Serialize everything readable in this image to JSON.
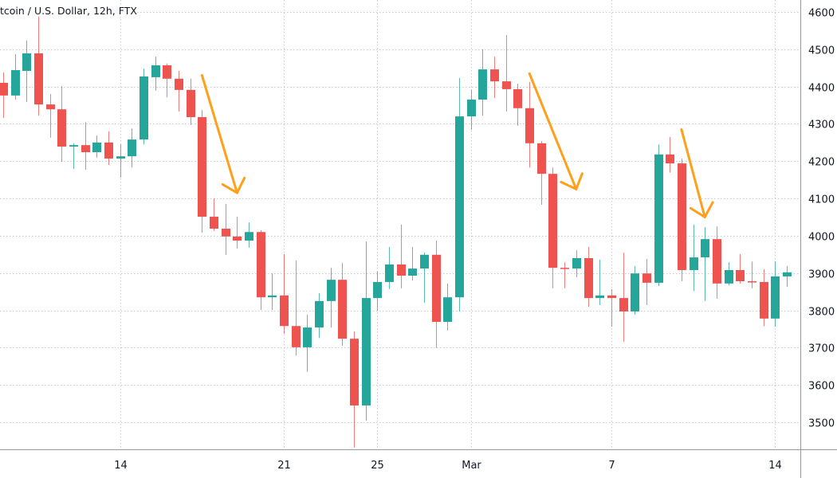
{
  "header": {
    "title": "tcoin / U.S. Dollar, 12h, FTX"
  },
  "colors": {
    "up": "#26a69a",
    "down": "#ef5350",
    "annotation": "#ff9f1a",
    "grid": "#c8cbd3",
    "axis": "#9598a1"
  },
  "chart_data": {
    "type": "candlestick",
    "title": "",
    "ylim": [
      3430,
      4630
    ],
    "grid": true,
    "y_ticks": [
      "4600",
      "4500",
      "4400",
      "4300",
      "4200",
      "4100",
      "4000",
      "3900",
      "3800",
      "3700",
      "3600",
      "3500"
    ],
    "x_ticks": [
      {
        "label": "14",
        "candle": 10
      },
      {
        "label": "21",
        "candle": 24
      },
      {
        "label": "25",
        "candle": 32
      },
      {
        "label": "Mar",
        "candle": 40
      },
      {
        "label": "7",
        "candle": 52
      },
      {
        "label": "14",
        "candle": 66
      }
    ],
    "columns": [
      "time",
      "open",
      "high",
      "low",
      "close"
    ],
    "candles": [
      [
        "Feb 9 00:00",
        4410,
        4438,
        4316,
        4376
      ],
      [
        "Feb 9 12:00",
        4376,
        4487,
        4365,
        4444
      ],
      [
        "Feb 10 00:00",
        4442,
        4523,
        4359,
        4489
      ],
      [
        "Feb 10 12:00",
        4489,
        4589,
        4322,
        4352
      ],
      [
        "Feb 11 00:00",
        4352,
        4380,
        4263,
        4339
      ],
      [
        "Feb 11 12:00",
        4339,
        4401,
        4198,
        4239
      ],
      [
        "Feb 12 00:00",
        4239,
        4248,
        4179,
        4243
      ],
      [
        "Feb 12 12:00",
        4243,
        4305,
        4177,
        4224
      ],
      [
        "Feb 13 00:00",
        4224,
        4269,
        4209,
        4250
      ],
      [
        "Feb 13 12:00",
        4250,
        4280,
        4190,
        4207
      ],
      [
        "Feb 14 00:00",
        4207,
        4245,
        4156,
        4213
      ],
      [
        "Feb 14 12:00",
        4213,
        4288,
        4183,
        4258
      ],
      [
        "Feb 15 00:00",
        4258,
        4448,
        4245,
        4427
      ],
      [
        "Feb 15 12:00",
        4425,
        4480,
        4389,
        4457
      ],
      [
        "Feb 16 00:00",
        4457,
        4462,
        4371,
        4421
      ],
      [
        "Feb 16 12:00",
        4421,
        4442,
        4333,
        4391
      ],
      [
        "Feb 17 00:00",
        4391,
        4421,
        4297,
        4318
      ],
      [
        "Feb 17 12:00",
        4318,
        4337,
        4008,
        4051
      ],
      [
        "Feb 18 00:00",
        4051,
        4100,
        4013,
        4019
      ],
      [
        "Feb 18 12:00",
        4019,
        4085,
        3949,
        3998
      ],
      [
        "Feb 19 00:00",
        3998,
        4051,
        3966,
        3987
      ],
      [
        "Feb 19 12:00",
        3987,
        4036,
        3968,
        4010
      ],
      [
        "Feb 20 00:00",
        4010,
        4015,
        3801,
        3835
      ],
      [
        "Feb 20 12:00",
        3835,
        3899,
        3801,
        3840
      ],
      [
        "Feb 21 00:00",
        3840,
        3951,
        3737,
        3758
      ],
      [
        "Feb 21 12:00",
        3758,
        3934,
        3679,
        3701
      ],
      [
        "Feb 22 00:00",
        3701,
        3788,
        3635,
        3754
      ],
      [
        "Feb 22 12:00",
        3754,
        3846,
        3726,
        3825
      ],
      [
        "Feb 23 00:00",
        3825,
        3914,
        3754,
        3882
      ],
      [
        "Feb 23 12:00",
        3882,
        3927,
        3705,
        3724
      ],
      [
        "Feb 24 00:00",
        3724,
        3743,
        3432,
        3545
      ],
      [
        "Feb 24 12:00",
        3545,
        3985,
        3504,
        3833
      ],
      [
        "Feb 25 00:00",
        3833,
        3904,
        3799,
        3876
      ],
      [
        "Feb 25 12:00",
        3876,
        3970,
        3857,
        3923
      ],
      [
        "Feb 26 00:00",
        3923,
        4030,
        3859,
        3893
      ],
      [
        "Feb 26 12:00",
        3893,
        3970,
        3880,
        3912
      ],
      [
        "Feb 27 00:00",
        3912,
        3955,
        3820,
        3949
      ],
      [
        "Feb 27 12:00",
        3949,
        3987,
        3699,
        3769
      ],
      [
        "Feb 28 00:00",
        3769,
        3872,
        3746,
        3835
      ],
      [
        "Feb 28 12:00",
        3835,
        4423,
        3797,
        4320
      ],
      [
        "Mar 1 00:00",
        4320,
        4391,
        4284,
        4365
      ],
      [
        "Mar 1 12:00",
        4365,
        4500,
        4322,
        4446
      ],
      [
        "Mar 2 00:00",
        4446,
        4480,
        4369,
        4414
      ],
      [
        "Mar 2 12:00",
        4414,
        4538,
        4333,
        4393
      ],
      [
        "Mar 3 00:00",
        4393,
        4408,
        4295,
        4342
      ],
      [
        "Mar 3 12:00",
        4342,
        4412,
        4183,
        4248
      ],
      [
        "Mar 4 00:00",
        4248,
        4254,
        4083,
        4166
      ],
      [
        "Mar 4 12:00",
        4166,
        4183,
        3859,
        3914
      ],
      [
        "Mar 5 00:00",
        3914,
        3929,
        3859,
        3912
      ],
      [
        "Mar 5 12:00",
        3912,
        3961,
        3889,
        3940
      ],
      [
        "Mar 6 00:00",
        3940,
        3970,
        3810,
        3833
      ],
      [
        "Mar 6 12:00",
        3833,
        3936,
        3814,
        3840
      ],
      [
        "Mar 7 00:00",
        3840,
        3857,
        3756,
        3833
      ],
      [
        "Mar 7 12:00",
        3833,
        3955,
        3716,
        3797
      ],
      [
        "Mar 8 00:00",
        3797,
        3919,
        3788,
        3899
      ],
      [
        "Mar 8 12:00",
        3899,
        3938,
        3814,
        3874
      ],
      [
        "Mar 9 00:00",
        3874,
        4245,
        3865,
        4218
      ],
      [
        "Mar 9 12:00",
        4218,
        4265,
        4169,
        4194
      ],
      [
        "Mar 10 00:00",
        4194,
        4207,
        3878,
        3908
      ],
      [
        "Mar 10 12:00",
        3908,
        4030,
        3852,
        3942
      ],
      [
        "Mar 11 00:00",
        3942,
        4023,
        3825,
        3991
      ],
      [
        "Mar 11 12:00",
        3991,
        4025,
        3831,
        3872
      ],
      [
        "Mar 12 00:00",
        3872,
        3929,
        3867,
        3908
      ],
      [
        "Mar 12 12:00",
        3908,
        3951,
        3872,
        3878
      ],
      [
        "Mar 13 00:00",
        3878,
        3931,
        3859,
        3876
      ],
      [
        "Mar 13 12:00",
        3876,
        3910,
        3758,
        3778
      ],
      [
        "Mar 14 00:00",
        3778,
        3931,
        3756,
        3891
      ],
      [
        "Mar 14 12:00",
        3891,
        3919,
        3863,
        3902
      ]
    ],
    "annotations": [
      {
        "type": "arrow",
        "from_candle": 17,
        "from_price": 4430,
        "to_candle": 20,
        "to_price": 4115
      },
      {
        "type": "arrow",
        "from_candle": 45,
        "from_price": 4435,
        "to_candle": 49,
        "to_price": 4125
      },
      {
        "type": "arrow",
        "from_candle": 58,
        "from_price": 4285,
        "to_candle": 60,
        "to_price": 4050
      }
    ]
  }
}
